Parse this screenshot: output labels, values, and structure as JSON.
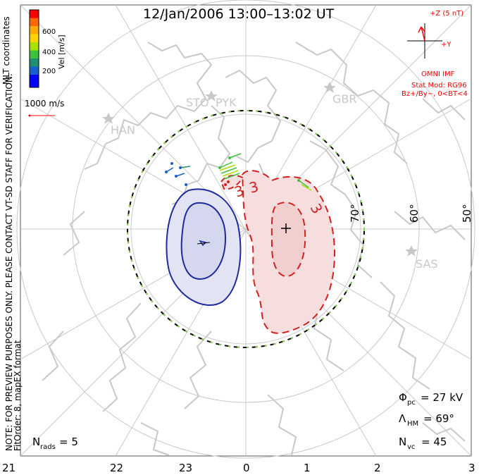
{
  "title": "12/Jan/2006 13:00–13:02 UT",
  "coordinates_label": "MLT coordinates",
  "preview_note": "NOTE: FOR PREVIEW PURPOSES ONLY. PLEASE CONTACT VT-SD STAFF FOR VERIFICATION.",
  "fit_note": "FitOrder: 8, mapEX format",
  "colorbar": {
    "label": "Vel [m/s]",
    "ticks": [
      "600",
      "400",
      "200"
    ],
    "colors": [
      "#ff0000",
      "#ff6a00",
      "#ffaa00",
      "#ffd400",
      "#a8e000",
      "#3cc23c",
      "#1f8f6f",
      "#1a5fd0",
      "#0000ff"
    ]
  },
  "scale_vector": {
    "label": "1000 m/s",
    "color": "#ff0000"
  },
  "imf": {
    "z_label": "+Z (5 nT)",
    "y_label": "+Y",
    "source": "OMNI IMF",
    "model": "Stat Mod: RG96",
    "condition": "Bz+/By−, 0<BT<4",
    "color": "#ff0000"
  },
  "stations": [
    "STO",
    "PYK",
    "GBR",
    "HAN",
    "SAS"
  ],
  "latitude_labels": [
    "70°",
    "60°",
    "50°"
  ],
  "mlt_labels": [
    "21",
    "22",
    "23",
    "0",
    "1",
    "2",
    "3"
  ],
  "stats": {
    "phi_pc": {
      "symbol": "Φ",
      "sub": "pc",
      "value": "= 27 kV"
    },
    "lambda_hm": {
      "symbol": "Λ",
      "sub": "HM",
      "value": "= 69°"
    },
    "n_vc": {
      "symbol": "N",
      "sub": "vc",
      "value": "= 45"
    },
    "n_rads": {
      "symbol": "N",
      "sub": "rads",
      "value": "= 5"
    }
  },
  "contours": {
    "positive_label": "3",
    "negative_color": "#1e2aa0",
    "positive_color": "#d42020",
    "negative_fill": "#e2e4f3",
    "positive_fill": "#f6dede"
  }
}
